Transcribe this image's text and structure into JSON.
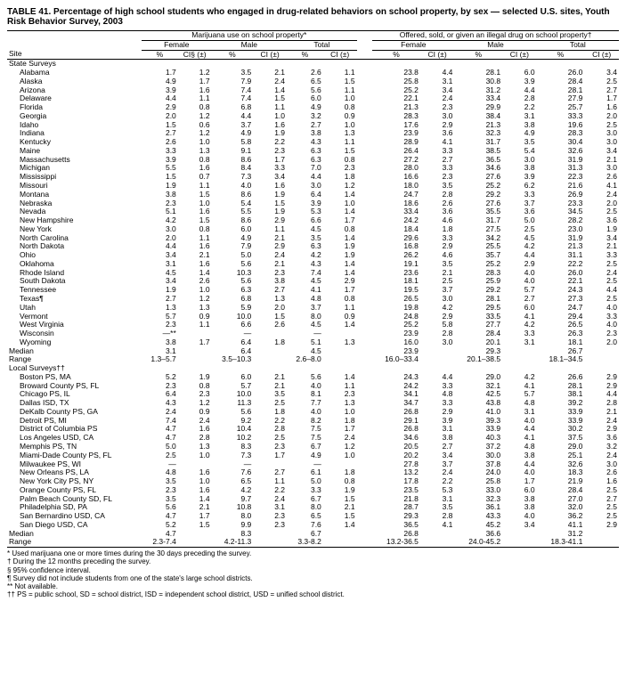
{
  "title": "TABLE 41. Percentage of high school students who engaged in drug-related behaviors on school property, by sex — selected U.S. sites, Youth Risk Behavior Survey, 2003",
  "header_group_a": "Marijuana use on school property*",
  "header_group_b": "Offered, sold, or given an illegal drug on school property†",
  "sub_female": "Female",
  "sub_male": "Male",
  "sub_total": "Total",
  "col_pct": "%",
  "col_ci": "CI (±)",
  "col_ci_first": "CI§ (±)",
  "site_label": "Site",
  "section_state": "State Surveys",
  "section_local": "Local Surveys††",
  "median_label": "Median",
  "range_label": "Range",
  "state_rows": [
    {
      "site": "Alabama",
      "v": [
        "1.7",
        "1.2",
        "3.5",
        "2.1",
        "2.6",
        "1.1",
        "23.8",
        "4.4",
        "28.1",
        "6.0",
        "26.0",
        "3.4"
      ]
    },
    {
      "site": "Alaska",
      "v": [
        "4.9",
        "1.7",
        "7.9",
        "2.4",
        "6.5",
        "1.5",
        "25.8",
        "3.1",
        "30.8",
        "3.9",
        "28.4",
        "2.5"
      ]
    },
    {
      "site": "Arizona",
      "v": [
        "3.9",
        "1.6",
        "7.4",
        "1.4",
        "5.6",
        "1.1",
        "25.2",
        "3.4",
        "31.2",
        "4.4",
        "28.1",
        "2.7"
      ]
    },
    {
      "site": "Delaware",
      "v": [
        "4.4",
        "1.1",
        "7.4",
        "1.5",
        "6.0",
        "1.0",
        "22.1",
        "2.4",
        "33.4",
        "2.8",
        "27.9",
        "1.7"
      ]
    },
    {
      "site": "Florida",
      "v": [
        "2.9",
        "0.8",
        "6.8",
        "1.1",
        "4.9",
        "0.8",
        "21.3",
        "2.3",
        "29.9",
        "2.2",
        "25.7",
        "1.6"
      ]
    },
    {
      "site": "Georgia",
      "v": [
        "2.0",
        "1.2",
        "4.4",
        "1.0",
        "3.2",
        "0.9",
        "28.3",
        "3.0",
        "38.4",
        "3.1",
        "33.3",
        "2.0"
      ]
    },
    {
      "site": "Idaho",
      "v": [
        "1.5",
        "0.6",
        "3.7",
        "1.6",
        "2.7",
        "1.0",
        "17.6",
        "2.9",
        "21.3",
        "3.8",
        "19.6",
        "2.5"
      ]
    },
    {
      "site": "Indiana",
      "v": [
        "2.7",
        "1.2",
        "4.9",
        "1.9",
        "3.8",
        "1.3",
        "23.9",
        "3.6",
        "32.3",
        "4.9",
        "28.3",
        "3.0"
      ]
    },
    {
      "site": "Kentucky",
      "v": [
        "2.6",
        "1.0",
        "5.8",
        "2.2",
        "4.3",
        "1.1",
        "28.9",
        "4.1",
        "31.7",
        "3.5",
        "30.4",
        "3.0"
      ]
    },
    {
      "site": "Maine",
      "v": [
        "3.3",
        "1.3",
        "9.1",
        "2.3",
        "6.3",
        "1.5",
        "26.4",
        "3.3",
        "38.5",
        "5.4",
        "32.6",
        "3.4"
      ]
    },
    {
      "site": "Massachusetts",
      "v": [
        "3.9",
        "0.8",
        "8.6",
        "1.7",
        "6.3",
        "0.8",
        "27.2",
        "2.7",
        "36.5",
        "3.0",
        "31.9",
        "2.1"
      ]
    },
    {
      "site": "Michigan",
      "v": [
        "5.5",
        "1.6",
        "8.4",
        "3.3",
        "7.0",
        "2.3",
        "28.0",
        "3.3",
        "34.6",
        "3.8",
        "31.3",
        "3.0"
      ]
    },
    {
      "site": "Mississippi",
      "v": [
        "1.5",
        "0.7",
        "7.3",
        "3.4",
        "4.4",
        "1.8",
        "16.6",
        "2.3",
        "27.6",
        "3.9",
        "22.3",
        "2.6"
      ]
    },
    {
      "site": "Missouri",
      "v": [
        "1.9",
        "1.1",
        "4.0",
        "1.6",
        "3.0",
        "1.2",
        "18.0",
        "3.5",
        "25.2",
        "6.2",
        "21.6",
        "4.1"
      ]
    },
    {
      "site": "Montana",
      "v": [
        "3.8",
        "1.5",
        "8.6",
        "1.9",
        "6.4",
        "1.4",
        "24.7",
        "2.8",
        "29.2",
        "3.3",
        "26.9",
        "2.4"
      ]
    },
    {
      "site": "Nebraska",
      "v": [
        "2.3",
        "1.0",
        "5.4",
        "1.5",
        "3.9",
        "1.0",
        "18.6",
        "2.6",
        "27.6",
        "3.7",
        "23.3",
        "2.0"
      ]
    },
    {
      "site": "Nevada",
      "v": [
        "5.1",
        "1.6",
        "5.5",
        "1.9",
        "5.3",
        "1.4",
        "33.4",
        "3.6",
        "35.5",
        "3.6",
        "34.5",
        "2.5"
      ]
    },
    {
      "site": "New Hampshire",
      "v": [
        "4.2",
        "1.5",
        "8.6",
        "2.9",
        "6.6",
        "1.7",
        "24.2",
        "4.6",
        "31.7",
        "5.0",
        "28.2",
        "3.6"
      ]
    },
    {
      "site": "New York",
      "v": [
        "3.0",
        "0.8",
        "6.0",
        "1.1",
        "4.5",
        "0.8",
        "18.4",
        "1.8",
        "27.5",
        "2.5",
        "23.0",
        "1.9"
      ]
    },
    {
      "site": "North Carolina",
      "v": [
        "2.0",
        "1.1",
        "4.9",
        "2.1",
        "3.5",
        "1.4",
        "29.6",
        "3.3",
        "34.2",
        "4.5",
        "31.9",
        "3.4"
      ]
    },
    {
      "site": "North Dakota",
      "v": [
        "4.4",
        "1.6",
        "7.9",
        "2.9",
        "6.3",
        "1.9",
        "16.8",
        "2.9",
        "25.5",
        "4.2",
        "21.3",
        "2.1"
      ]
    },
    {
      "site": "Ohio",
      "v": [
        "3.4",
        "2.1",
        "5.0",
        "2.4",
        "4.2",
        "1.9",
        "26.2",
        "4.6",
        "35.7",
        "4.4",
        "31.1",
        "3.3"
      ]
    },
    {
      "site": "Oklahoma",
      "v": [
        "3.1",
        "1.6",
        "5.6",
        "2.1",
        "4.3",
        "1.4",
        "19.1",
        "3.5",
        "25.2",
        "2.9",
        "22.2",
        "2.5"
      ]
    },
    {
      "site": "Rhode Island",
      "v": [
        "4.5",
        "1.4",
        "10.3",
        "2.3",
        "7.4",
        "1.4",
        "23.6",
        "2.1",
        "28.3",
        "4.0",
        "26.0",
        "2.4"
      ]
    },
    {
      "site": "South Dakota",
      "v": [
        "3.4",
        "2.6",
        "5.6",
        "3.8",
        "4.5",
        "2.9",
        "18.1",
        "2.5",
        "25.9",
        "4.0",
        "22.1",
        "2.5"
      ]
    },
    {
      "site": "Tennessee",
      "v": [
        "1.9",
        "1.0",
        "6.3",
        "2.7",
        "4.1",
        "1.7",
        "19.5",
        "3.7",
        "29.2",
        "5.7",
        "24.3",
        "4.4"
      ]
    },
    {
      "site": "Texas¶",
      "v": [
        "2.7",
        "1.2",
        "6.8",
        "1.3",
        "4.8",
        "0.8",
        "26.5",
        "3.0",
        "28.1",
        "2.7",
        "27.3",
        "2.5"
      ]
    },
    {
      "site": "Utah",
      "v": [
        "1.3",
        "1.3",
        "5.9",
        "2.0",
        "3.7",
        "1.1",
        "19.8",
        "4.2",
        "29.5",
        "6.0",
        "24.7",
        "4.0"
      ]
    },
    {
      "site": "Vermont",
      "v": [
        "5.7",
        "0.9",
        "10.0",
        "1.5",
        "8.0",
        "0.9",
        "24.8",
        "2.9",
        "33.5",
        "4.1",
        "29.4",
        "3.3"
      ]
    },
    {
      "site": "West Virginia",
      "v": [
        "2.3",
        "1.1",
        "6.6",
        "2.6",
        "4.5",
        "1.4",
        "25.2",
        "5.8",
        "27.7",
        "4.2",
        "26.5",
        "4.0"
      ]
    },
    {
      "site": "Wisconsin",
      "v": [
        "—**",
        "",
        "—",
        "",
        "—",
        "",
        "23.9",
        "2.8",
        "28.4",
        "3.3",
        "26.3",
        "2.3"
      ]
    },
    {
      "site": "Wyoming",
      "v": [
        "3.8",
        "1.7",
        "6.4",
        "1.8",
        "5.1",
        "1.3",
        "16.0",
        "3.0",
        "20.1",
        "3.1",
        "18.1",
        "2.0"
      ]
    }
  ],
  "state_median": [
    "3.1",
    "",
    "6.4",
    "",
    "4.5",
    "",
    "23.9",
    "",
    "29.3",
    "",
    "26.7",
    ""
  ],
  "state_range": [
    "1.3–5.7",
    "",
    "3.5–10.3",
    "",
    "2.6–8.0",
    "",
    "16.0–33.4",
    "",
    "20.1–38.5",
    "",
    "18.1–34.5",
    ""
  ],
  "local_rows": [
    {
      "site": "Boston PS, MA",
      "v": [
        "5.2",
        "1.9",
        "6.0",
        "2.1",
        "5.6",
        "1.4",
        "24.3",
        "4.4",
        "29.0",
        "4.2",
        "26.6",
        "2.9"
      ]
    },
    {
      "site": "Broward County PS, FL",
      "v": [
        "2.3",
        "0.8",
        "5.7",
        "2.1",
        "4.0",
        "1.1",
        "24.2",
        "3.3",
        "32.1",
        "4.1",
        "28.1",
        "2.9"
      ]
    },
    {
      "site": "Chicago PS, IL",
      "v": [
        "6.4",
        "2.3",
        "10.0",
        "3.5",
        "8.1",
        "2.3",
        "34.1",
        "4.8",
        "42.5",
        "5.7",
        "38.1",
        "4.4"
      ]
    },
    {
      "site": "Dallas ISD, TX",
      "v": [
        "4.3",
        "1.2",
        "11.3",
        "2.5",
        "7.7",
        "1.3",
        "34.7",
        "3.3",
        "43.8",
        "4.8",
        "39.2",
        "2.8"
      ]
    },
    {
      "site": "DeKalb County PS, GA",
      "v": [
        "2.4",
        "0.9",
        "5.6",
        "1.8",
        "4.0",
        "1.0",
        "26.8",
        "2.9",
        "41.0",
        "3.1",
        "33.9",
        "2.1"
      ]
    },
    {
      "site": "Detroit PS, MI",
      "v": [
        "7.4",
        "2.4",
        "9.2",
        "2.2",
        "8.2",
        "1.8",
        "29.1",
        "3.9",
        "39.3",
        "4.0",
        "33.9",
        "2.4"
      ]
    },
    {
      "site": "District of Columbia PS",
      "v": [
        "4.7",
        "1.6",
        "10.4",
        "2.8",
        "7.5",
        "1.7",
        "26.8",
        "3.1",
        "33.9",
        "4.4",
        "30.2",
        "2.9"
      ]
    },
    {
      "site": "Los Angeles USD, CA",
      "v": [
        "4.7",
        "2.8",
        "10.2",
        "2.5",
        "7.5",
        "2.4",
        "34.6",
        "3.8",
        "40.3",
        "4.1",
        "37.5",
        "3.6"
      ]
    },
    {
      "site": "Memphis PS, TN",
      "v": [
        "5.0",
        "1.3",
        "8.3",
        "2.3",
        "6.7",
        "1.2",
        "20.5",
        "2.7",
        "37.2",
        "4.8",
        "29.0",
        "3.2"
      ]
    },
    {
      "site": "Miami-Dade County PS, FL",
      "v": [
        "2.5",
        "1.0",
        "7.3",
        "1.7",
        "4.9",
        "1.0",
        "20.2",
        "3.4",
        "30.0",
        "3.8",
        "25.1",
        "2.4"
      ]
    },
    {
      "site": "Milwaukee PS, WI",
      "v": [
        "—",
        "",
        "—",
        "",
        "—",
        "",
        "27.8",
        "3.7",
        "37.8",
        "4.4",
        "32.6",
        "3.0"
      ]
    },
    {
      "site": "New Orleans PS, LA",
      "v": [
        "4.8",
        "1.6",
        "7.6",
        "2.7",
        "6.1",
        "1.8",
        "13.2",
        "2.4",
        "24.0",
        "4.0",
        "18.3",
        "2.6"
      ]
    },
    {
      "site": "New York City PS, NY",
      "v": [
        "3.5",
        "1.0",
        "6.5",
        "1.1",
        "5.0",
        "0.8",
        "17.8",
        "2.2",
        "25.8",
        "1.7",
        "21.9",
        "1.6"
      ]
    },
    {
      "site": "Orange County PS, FL",
      "v": [
        "2.3",
        "1.6",
        "4.2",
        "2.2",
        "3.3",
        "1.9",
        "23.5",
        "5.3",
        "33.0",
        "6.0",
        "28.4",
        "2.5"
      ]
    },
    {
      "site": "Palm Beach County SD, FL",
      "v": [
        "3.5",
        "1.4",
        "9.7",
        "2.4",
        "6.7",
        "1.5",
        "21.8",
        "3.1",
        "32.3",
        "3.8",
        "27.0",
        "2.7"
      ]
    },
    {
      "site": "Philadelphia SD, PA",
      "v": [
        "5.6",
        "2.1",
        "10.8",
        "3.1",
        "8.0",
        "2.1",
        "28.7",
        "3.5",
        "36.1",
        "3.8",
        "32.0",
        "2.5"
      ]
    },
    {
      "site": "San Bernardino USD, CA",
      "v": [
        "4.7",
        "1.7",
        "8.0",
        "2.3",
        "6.5",
        "1.5",
        "29.3",
        "2.8",
        "43.3",
        "4.0",
        "36.2",
        "2.5"
      ]
    },
    {
      "site": "San Diego USD, CA",
      "v": [
        "5.2",
        "1.5",
        "9.9",
        "2.3",
        "7.6",
        "1.4",
        "36.5",
        "4.1",
        "45.2",
        "3.4",
        "41.1",
        "2.9"
      ]
    }
  ],
  "local_median": [
    "4.7",
    "",
    "8.3",
    "",
    "6.7",
    "",
    "26.8",
    "",
    "36.6",
    "",
    "31.2",
    ""
  ],
  "local_range": [
    "2.3-7.4",
    "",
    "4.2-11.3",
    "",
    "3.3-8.2",
    "",
    "13.2-36.5",
    "",
    "24.0-45.2",
    "",
    "18.3-41.1",
    ""
  ],
  "footnotes": [
    "* Used marijuana one or more times during the 30 days preceding the survey.",
    "† During the 12 months preceding the survey.",
    "§ 95% confidence interval.",
    "¶ Survey did not include students from one of the state's large school districts.",
    "** Not available.",
    "†† PS = public school, SD = school district, ISD = independent school district, USD = unified school district."
  ]
}
